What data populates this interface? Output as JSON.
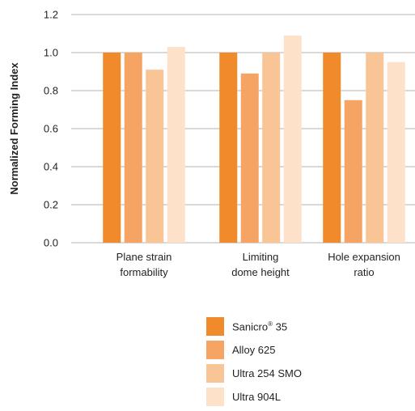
{
  "chart_data": {
    "type": "bar",
    "ylabel": "Normalized Forming Index",
    "xlabel": "",
    "ylim": [
      0,
      1.2
    ],
    "yticks": [
      "0.0",
      "0.2",
      "0.4",
      "0.6",
      "0.8",
      "1.0",
      "1.2"
    ],
    "grid": true,
    "legend_position": "bottom-right",
    "categories": [
      [
        "Plane strain",
        "formability"
      ],
      [
        "Limiting",
        "dome height"
      ],
      [
        "Hole expansion",
        "ratio"
      ]
    ],
    "series": [
      {
        "name": "Sanicro",
        "name_sup": "®",
        "name_suffix": " 35",
        "color": "#f18a2b",
        "values": [
          1.0,
          1.0,
          1.0
        ]
      },
      {
        "name": "Alloy 625",
        "color": "#f5a464",
        "values": [
          1.0,
          0.89,
          0.75
        ]
      },
      {
        "name": "Ultra 254 SMO",
        "color": "#f9c496",
        "values": [
          0.91,
          1.0,
          1.0
        ]
      },
      {
        "name": "Ultra 904L",
        "color": "#fde2c9",
        "values": [
          1.03,
          1.09,
          0.95
        ]
      }
    ]
  }
}
